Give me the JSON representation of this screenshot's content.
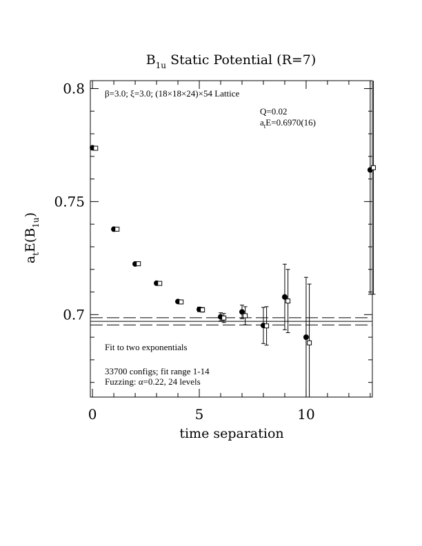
{
  "chart_data": {
    "type": "scatter",
    "title": {
      "main": "B",
      "sub": "1u",
      "rest": " Static Potential (R=7)"
    },
    "ylabel": {
      "a": "a",
      "t": "t",
      "mid": "E(B",
      "sub": "1u",
      "close": ")"
    },
    "xlabel": "time separation",
    "xlim": [
      -0.1,
      13.1
    ],
    "ylim": [
      0.6635,
      0.8035
    ],
    "x_ticks": [
      0,
      5,
      10
    ],
    "x_tick_labels": [
      "0",
      "5",
      "10"
    ],
    "y_ticks": [
      0.7,
      0.75,
      0.8
    ],
    "y_tick_labels": [
      "0.7",
      "0.75",
      "0.8"
    ],
    "annotations": {
      "lattice": "β=3.0; ξ=3.0; (18×18×24)×54 Lattice",
      "q": "Q=0.02",
      "ate_prefix": "a",
      "ate_sub": "t",
      "ate_value": "E=0.6970(16)",
      "fit_method": "Fit to two exponentials",
      "configs": "33700 configs; fit range 1-14",
      "fuzzing": "Fuzzing: α=0.22, 24 levels"
    },
    "fit_band": {
      "center": 0.697,
      "error": 0.0016
    },
    "series": [
      {
        "marker": "filled-circle",
        "points": [
          {
            "x": 0,
            "y": 0.7738,
            "err": 0.0004
          },
          {
            "x": 1,
            "y": 0.7378,
            "err": 0.0004
          },
          {
            "x": 2,
            "y": 0.7224,
            "err": 0.0005
          },
          {
            "x": 3,
            "y": 0.7139,
            "err": 0.0006
          },
          {
            "x": 4,
            "y": 0.7058,
            "err": 0.0007
          },
          {
            "x": 5,
            "y": 0.7023,
            "err": 0.001
          },
          {
            "x": 6,
            "y": 0.699,
            "err": 0.0018
          },
          {
            "x": 7,
            "y": 0.7012,
            "err": 0.003
          },
          {
            "x": 8,
            "y": 0.6952,
            "err": 0.008
          },
          {
            "x": 9,
            "y": 0.7078,
            "err": 0.0145
          },
          {
            "x": 10,
            "y": 0.69,
            "err": 0.0265
          },
          {
            "x": 13,
            "y": 0.764,
            "err": 0.055
          }
        ]
      },
      {
        "marker": "open-square",
        "points": [
          {
            "x": 0.15,
            "y": 0.7736,
            "err": 0.0004
          },
          {
            "x": 1.15,
            "y": 0.7378,
            "err": 0.0004
          },
          {
            "x": 2.15,
            "y": 0.7225,
            "err": 0.0005
          },
          {
            "x": 3.15,
            "y": 0.7138,
            "err": 0.0006
          },
          {
            "x": 4.15,
            "y": 0.7056,
            "err": 0.0007
          },
          {
            "x": 5.15,
            "y": 0.7021,
            "err": 0.001
          },
          {
            "x": 6.15,
            "y": 0.6985,
            "err": 0.002
          },
          {
            "x": 7.15,
            "y": 0.6995,
            "err": 0.004
          },
          {
            "x": 8.15,
            "y": 0.695,
            "err": 0.0085
          },
          {
            "x": 9.15,
            "y": 0.706,
            "err": 0.014
          },
          {
            "x": 10.15,
            "y": 0.6875,
            "err": 0.026
          },
          {
            "x": 13.15,
            "y": 0.765,
            "err": 0.056
          }
        ]
      }
    ]
  }
}
